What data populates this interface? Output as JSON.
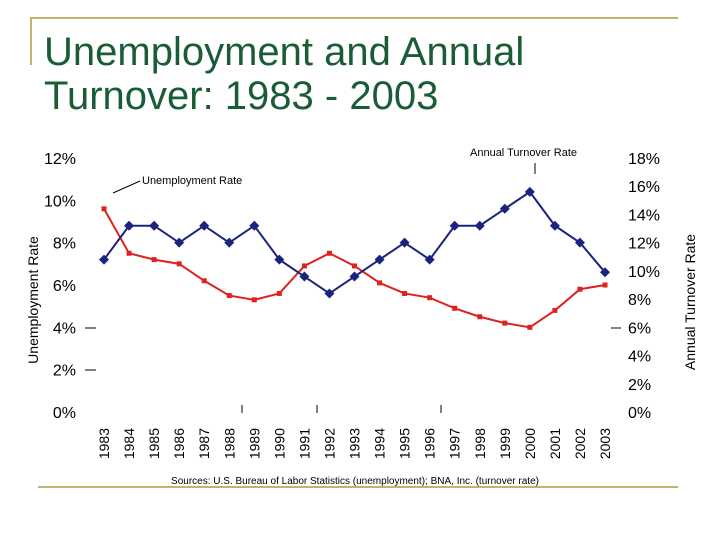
{
  "title": "Unemployment and Annual Turnover: 1983 - 2003",
  "source": "Sources: U.S. Bureau of Labor Statistics (unemployment); BNA, Inc. (turnover rate)",
  "chart_data": {
    "type": "line",
    "x": [
      "1983",
      "1984",
      "1985",
      "1986",
      "1987",
      "1988",
      "1989",
      "1990",
      "1991",
      "1992",
      "1993",
      "1994",
      "1995",
      "1996",
      "1997",
      "1998",
      "1999",
      "2000",
      "2001",
      "2002",
      "2003"
    ],
    "y_left": {
      "label": "Unemployment Rate",
      "lim": [
        0,
        12
      ],
      "ticks": [
        "0%",
        "2%",
        "4%",
        "6%",
        "8%",
        "10%",
        "12%"
      ]
    },
    "y_right": {
      "label": "Annual Turnover Rate",
      "lim": [
        0,
        18
      ],
      "ticks": [
        "0%",
        "2%",
        "4%",
        "6%",
        "8%",
        "10%",
        "12%",
        "14%",
        "16%",
        "18%"
      ]
    },
    "series": [
      {
        "name": "Unemployment Rate",
        "axis": "left",
        "color": "#dd2222",
        "marker": "square",
        "values": [
          9.6,
          7.5,
          7.2,
          7.0,
          6.2,
          5.5,
          5.3,
          5.6,
          6.9,
          7.5,
          6.9,
          6.1,
          5.6,
          5.4,
          4.9,
          4.5,
          4.2,
          4.0,
          4.8,
          5.8,
          6.0
        ]
      },
      {
        "name": "Annual Turnover Rate",
        "axis": "right",
        "color": "#1a237e",
        "marker": "diamond",
        "values": [
          10.8,
          13.2,
          13.2,
          12.0,
          13.2,
          12.0,
          13.2,
          10.8,
          9.6,
          8.4,
          9.6,
          10.8,
          12.0,
          10.8,
          13.2,
          13.2,
          14.4,
          15.6,
          13.2,
          12.0,
          9.9
        ]
      }
    ],
    "annotations": [
      "Annual Turnover Rate",
      "Unemployment Rate"
    ]
  }
}
